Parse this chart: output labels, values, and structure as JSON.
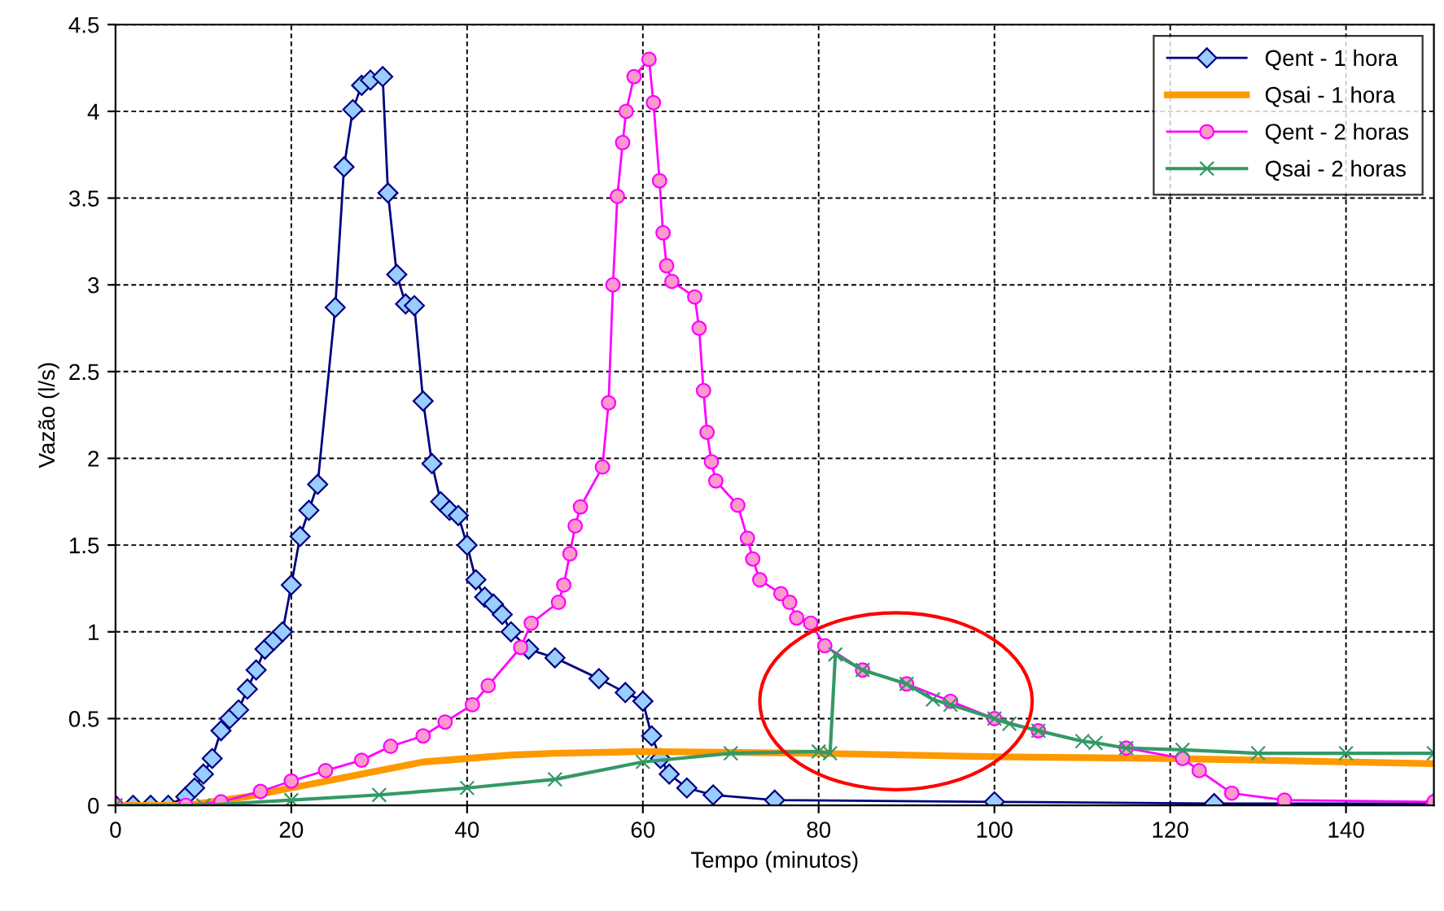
{
  "chart_data": {
    "type": "line",
    "xlabel": "Tempo (minutos)",
    "ylabel": "Vazão (l/s)",
    "xlim": [
      0,
      150
    ],
    "ylim": [
      0,
      4.5
    ],
    "xticks": [
      0,
      20,
      40,
      60,
      80,
      100,
      120,
      140
    ],
    "yticks": [
      0,
      0.5,
      1,
      1.5,
      2,
      2.5,
      3,
      3.5,
      4,
      4.5
    ],
    "grid": true,
    "legend": "top right",
    "series": [
      {
        "name": "Qent - 1 hora",
        "color": "#000080",
        "marker": "diamond",
        "x": [
          0,
          2,
          4,
          6,
          8,
          9,
          10,
          11,
          12,
          13,
          14,
          15,
          16,
          17,
          18,
          19,
          20,
          21,
          22,
          23,
          25,
          26,
          27,
          28,
          29,
          30.4,
          31,
          32,
          33,
          34,
          35,
          36,
          37,
          38,
          39,
          40,
          41,
          42,
          43,
          44,
          45,
          47,
          50,
          55,
          58,
          60,
          61,
          62,
          63,
          65,
          68,
          75,
          100,
          125,
          150
        ],
        "values": [
          0,
          0,
          0,
          0,
          0.05,
          0.1,
          0.18,
          0.27,
          0.43,
          0.5,
          0.55,
          0.67,
          0.78,
          0.9,
          0.95,
          1.0,
          1.27,
          1.55,
          1.7,
          1.85,
          2.87,
          3.68,
          4.01,
          4.15,
          4.18,
          4.2,
          3.53,
          3.06,
          2.89,
          2.88,
          2.33,
          1.97,
          1.75,
          1.7,
          1.67,
          1.5,
          1.3,
          1.2,
          1.16,
          1.1,
          1.0,
          0.9,
          0.85,
          0.73,
          0.65,
          0.6,
          0.4,
          0.27,
          0.18,
          0.1,
          0.06,
          0.03,
          0.02,
          0.01,
          0.01
        ]
      },
      {
        "name": "Qsai - 1 hora",
        "color": "#ff9900",
        "marker": "none",
        "x": [
          0,
          8,
          15,
          20,
          25,
          30,
          35,
          40,
          45,
          50,
          60,
          80,
          100,
          120,
          150
        ],
        "values": [
          0,
          0,
          0.05,
          0.1,
          0.15,
          0.2,
          0.25,
          0.27,
          0.29,
          0.3,
          0.31,
          0.3,
          0.28,
          0.27,
          0.24
        ]
      },
      {
        "name": "Qent - 2 horas",
        "color": "#ff00ff",
        "marker": "circle",
        "x": [
          0,
          8,
          12,
          16.5,
          20,
          23.9,
          28,
          31.3,
          35,
          37.5,
          40.6,
          42.4,
          46.1,
          47.3,
          50.4,
          51,
          51.7,
          52.3,
          52.9,
          55.4,
          56.1,
          56.6,
          57.1,
          57.7,
          58.1,
          59,
          60.7,
          61.2,
          61.9,
          62.3,
          62.7,
          63.3,
          65.9,
          66.4,
          66.9,
          67.3,
          67.8,
          68.3,
          70.8,
          71.9,
          72.5,
          73.3,
          75.7,
          76.7,
          77.5,
          79.1,
          80.7,
          85,
          90,
          95,
          100,
          105,
          110,
          115,
          121.4,
          123.3,
          127,
          133,
          150
        ],
        "values": [
          0,
          0,
          0.02,
          0.08,
          0.14,
          0.2,
          0.26,
          0.34,
          0.4,
          0.48,
          0.58,
          0.69,
          0.91,
          1.05,
          1.17,
          1.27,
          1.45,
          1.61,
          1.72,
          1.95,
          2.32,
          3.0,
          3.51,
          3.82,
          4.0,
          4.2,
          4.3,
          4.05,
          3.6,
          3.3,
          3.11,
          3.02,
          2.93,
          2.75,
          2.39,
          2.15,
          1.98,
          1.87,
          1.73,
          1.54,
          1.42,
          1.3,
          1.22,
          1.17,
          1.08,
          1.05,
          0.92,
          0.78,
          0.7,
          0.6,
          0.5,
          0.43,
          null,
          0.33,
          0.27,
          0.2,
          0.07,
          0.03,
          0.02
        ]
      },
      {
        "name": "Qsai - 2 horas",
        "color": "#339966",
        "marker": "cross",
        "x": [
          0,
          10,
          20,
          30,
          40,
          50,
          60,
          70,
          80,
          81.3,
          81.9,
          85,
          90,
          93,
          95,
          100,
          101.7,
          105,
          110,
          111.5,
          115,
          121.4,
          130,
          140,
          150
        ],
        "values": [
          0,
          0,
          0.03,
          0.06,
          0.1,
          0.15,
          0.25,
          0.3,
          0.31,
          0.3,
          0.87,
          0.78,
          0.7,
          0.61,
          0.58,
          0.5,
          0.47,
          0.43,
          0.37,
          0.36,
          0.33,
          0.32,
          0.3,
          0.3,
          0.3
        ]
      }
    ]
  }
}
